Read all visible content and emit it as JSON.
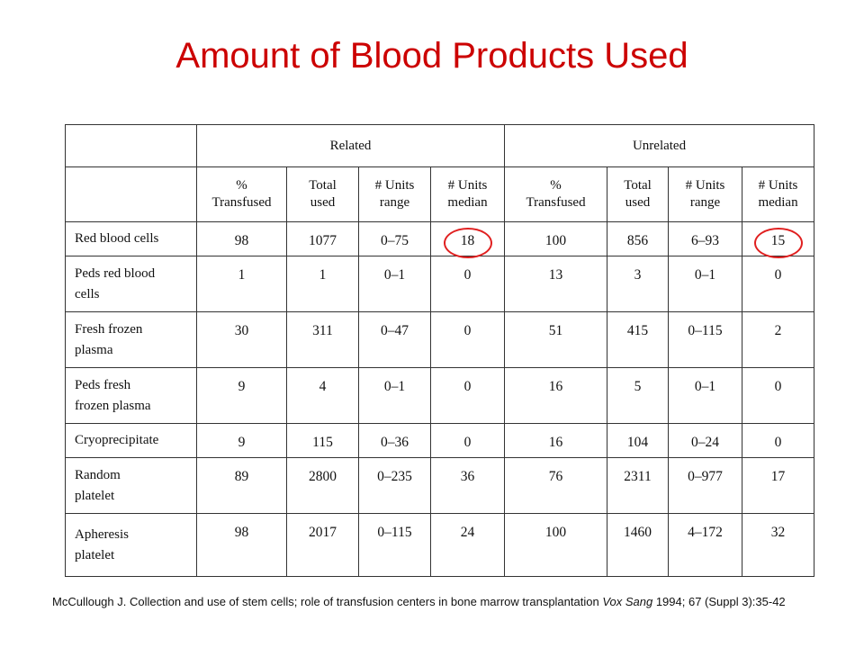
{
  "title": "Amount of Blood Products Used",
  "table": {
    "group_headers": [
      "Related",
      "Unrelated"
    ],
    "column_headers": [
      [
        "%",
        "Transfused"
      ],
      [
        "Total",
        "used"
      ],
      [
        "# Units",
        "range"
      ],
      [
        "# Units",
        "median"
      ],
      [
        "%",
        "Transfused"
      ],
      [
        "Total",
        "used"
      ],
      [
        "# Units",
        "range"
      ],
      [
        "# Units",
        "median"
      ]
    ],
    "rows": [
      {
        "label": [
          "Red blood cells"
        ],
        "values": [
          "98",
          "1077",
          "0–75",
          "18",
          "100",
          "856",
          "6–93",
          "15"
        ]
      },
      {
        "label": [
          "Peds red blood",
          "cells"
        ],
        "values": [
          "1",
          "1",
          "0–1",
          "0",
          "13",
          "3",
          "0–1",
          "0"
        ]
      },
      {
        "label": [
          "Fresh frozen",
          "plasma"
        ],
        "values": [
          "30",
          "311",
          "0–47",
          "0",
          "51",
          "415",
          "0–115",
          "2"
        ]
      },
      {
        "label": [
          "Peds fresh",
          "frozen plasma"
        ],
        "values": [
          "9",
          "4",
          "0–1",
          "0",
          "16",
          "5",
          "0–1",
          "0"
        ]
      },
      {
        "label": [
          "Cryoprecipitate"
        ],
        "values": [
          "9",
          "115",
          "0–36",
          "0",
          "16",
          "104",
          "0–24",
          "0"
        ]
      },
      {
        "label": [
          "Random",
          "platelet"
        ],
        "values": [
          "89",
          "2800",
          "0–235",
          "36",
          "76",
          "2311",
          "0–977",
          "17"
        ]
      },
      {
        "label": [
          "Apheresis",
          "platelet"
        ],
        "values": [
          "98",
          "2017",
          "0–115",
          "24",
          "100",
          "1460",
          "4–172",
          "32"
        ]
      }
    ],
    "highlight_color": "#e02020"
  },
  "citation": {
    "before": "McCullough J.  Collection and use of stem cells; role of transfusion centers in bone marrow transplantation ",
    "journal": "Vox Sang",
    "after": " 1994; 67 (Suppl 3):35-42"
  }
}
